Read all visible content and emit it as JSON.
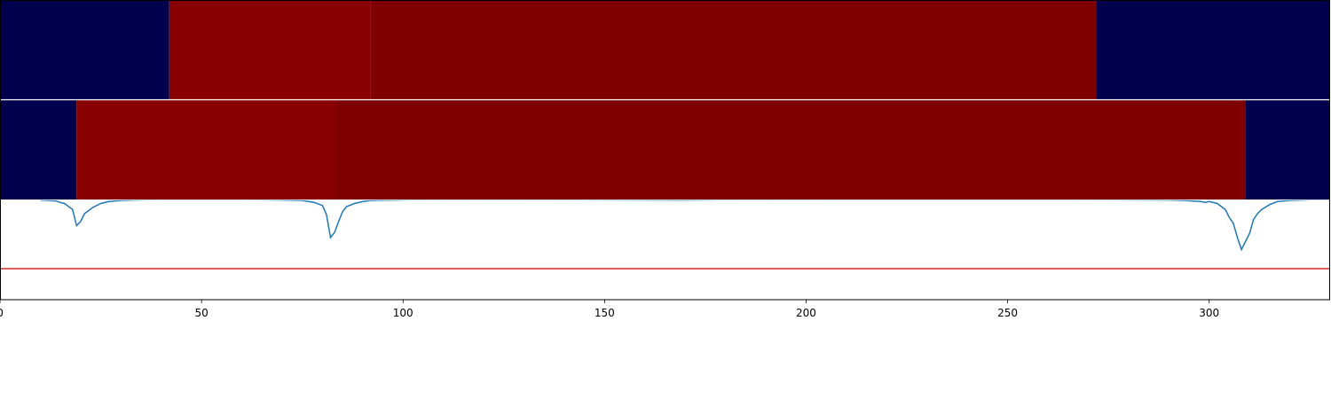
{
  "chart_data": {
    "type": "heatmap",
    "title": "",
    "xlabel": "",
    "ylabel": "",
    "xlim": [
      0,
      330
    ],
    "x_ticks": [
      0,
      50,
      100,
      150,
      200,
      250,
      300
    ],
    "x_tick_labels": [
      "0",
      "50",
      "100",
      "150",
      "200",
      "250",
      "300"
    ],
    "grid": false,
    "panels": [
      {
        "name": "",
        "type": "segments",
        "segments": [
          {
            "start": 0,
            "end": 42,
            "color": "#00004c"
          },
          {
            "start": 42,
            "end": 92,
            "color": "#880000"
          },
          {
            "start": 92,
            "end": 272,
            "color": "#7e0000"
          },
          {
            "start": 272,
            "end": 330,
            "color": "#00004c"
          }
        ]
      },
      {
        "name": "",
        "type": "segments",
        "segments": [
          {
            "start": 0,
            "end": 19,
            "color": "#00004c"
          },
          {
            "start": 19,
            "end": 83,
            "color": "#880000"
          },
          {
            "start": 83,
            "end": 309,
            "color": "#7e0000"
          },
          {
            "start": 309,
            "end": 330,
            "color": "#00004c"
          }
        ]
      },
      {
        "name": "",
        "type": "line",
        "ylim": [
          0,
          1
        ],
        "series": [
          {
            "color": "#1f77b4",
            "x": [
              10,
              12,
              14,
              15,
              16,
              17,
              18,
              19,
              20,
              21,
              23,
              25,
              27,
              30,
              34,
              40,
              60,
              70,
              75,
              78,
              80,
              81,
              82,
              83,
              84,
              85,
              86,
              88,
              90,
              92,
              94,
              98,
              102,
              106,
              107,
              140,
              170,
              180,
              210,
              266,
              290,
              294,
              296,
              298,
              299,
              300,
              302,
              304,
              305,
              306,
              307,
              308,
              309,
              310,
              311,
              312,
              313,
              315,
              317,
              320,
              325,
              330
            ],
            "y": [
              0.995,
              0.99,
              0.985,
              0.97,
              0.96,
              0.93,
              0.9,
              0.74,
              0.78,
              0.86,
              0.92,
              0.96,
              0.98,
              0.99,
              0.996,
              1.0,
              1.0,
              0.995,
              0.99,
              0.97,
              0.94,
              0.85,
              0.62,
              0.67,
              0.78,
              0.88,
              0.93,
              0.96,
              0.98,
              0.99,
              0.992,
              0.995,
              0.998,
              0.998,
              1.0,
              0.998,
              0.995,
              0.998,
              1.0,
              1.0,
              0.995,
              0.99,
              0.985,
              0.98,
              0.97,
              0.98,
              0.96,
              0.9,
              0.82,
              0.76,
              0.62,
              0.5,
              0.58,
              0.66,
              0.8,
              0.86,
              0.9,
              0.95,
              0.98,
              0.99,
              0.998,
              1.0
            ]
          },
          {
            "color": "#d62728",
            "x": [
              0,
              330
            ],
            "y": [
              0.31,
              0.31
            ]
          }
        ]
      }
    ]
  }
}
